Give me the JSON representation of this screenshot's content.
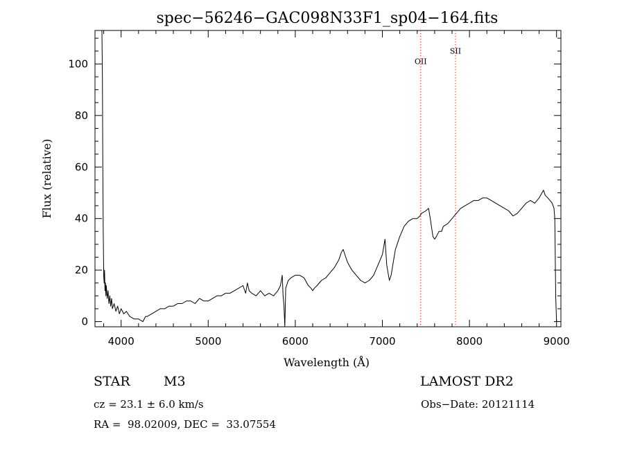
{
  "chart_data": {
    "type": "line",
    "title": "spec−56246−GAC098N33F1_sp04−164.fits",
    "xlabel": "Wavelength (Å)",
    "ylabel": "Flux (relative)",
    "xlim": [
      3700,
      9050
    ],
    "ylim": [
      -2,
      113
    ],
    "xticks": [
      4000,
      5000,
      6000,
      7000,
      8000,
      9000
    ],
    "yticks": [
      0,
      20,
      40,
      60,
      80,
      100
    ],
    "xtick_labels": [
      "4000",
      "5000",
      "6000",
      "7000",
      "8000",
      "9000"
    ],
    "ytick_labels": [
      "0",
      "20",
      "40",
      "60",
      "80",
      "100"
    ],
    "grid": false,
    "line_color": "#000000",
    "marker_color": "#ff0000",
    "annotations": [
      {
        "label": "OII",
        "x": 7440,
        "label_y": 100
      },
      {
        "label": "SII",
        "x": 7840,
        "label_y": 104
      }
    ],
    "series": [
      {
        "x": [
          3780,
          3785,
          3790,
          3795,
          3800,
          3805,
          3810,
          3815,
          3820,
          3825,
          3830,
          3840,
          3850,
          3860,
          3870,
          3880,
          3890,
          3900,
          3920,
          3940,
          3960,
          3980,
          4000,
          4030,
          4060,
          4100,
          4150,
          4200,
          4250,
          4280,
          4300,
          4350,
          4400,
          4450,
          4500,
          4550,
          4600,
          4650,
          4700,
          4750,
          4800,
          4850,
          4900,
          4950,
          5000,
          5050,
          5100,
          5150,
          5200,
          5250,
          5300,
          5350,
          5400,
          5430,
          5450,
          5470,
          5500,
          5550,
          5600,
          5650,
          5700,
          5750,
          5800,
          5830,
          5850,
          5860,
          5870,
          5880,
          5890,
          5900,
          5910,
          5920,
          5950,
          6000,
          6050,
          6100,
          6150,
          6180,
          6200,
          6220,
          6250,
          6300,
          6350,
          6400,
          6450,
          6500,
          6530,
          6550,
          6580,
          6600,
          6650,
          6700,
          6750,
          6800,
          6850,
          6900,
          6950,
          7000,
          7030,
          7050,
          7070,
          7080,
          7100,
          7120,
          7130,
          7150,
          7200,
          7250,
          7300,
          7350,
          7400,
          7430,
          7450,
          7500,
          7530,
          7550,
          7580,
          7600,
          7620,
          7650,
          7680,
          7700,
          7750,
          7800,
          7850,
          7900,
          7950,
          8000,
          8050,
          8100,
          8150,
          8200,
          8250,
          8300,
          8350,
          8400,
          8450,
          8500,
          8550,
          8600,
          8650,
          8700,
          8750,
          8800,
          8850,
          8870,
          8900,
          8950,
          8970,
          8980,
          8990,
          9000
        ],
        "y": [
          113,
          95,
          60,
          35,
          18,
          15,
          20,
          12,
          15,
          10,
          14,
          9,
          12,
          7,
          10,
          6,
          9,
          5,
          7,
          4,
          6,
          3,
          5,
          3,
          4,
          2,
          1,
          1,
          0,
          2,
          2,
          3,
          4,
          5,
          5,
          6,
          6,
          7,
          7,
          8,
          8,
          7,
          9,
          8,
          8,
          9,
          10,
          10,
          11,
          11,
          12,
          13,
          14,
          11,
          15,
          12,
          11,
          10,
          12,
          10,
          11,
          10,
          12,
          14,
          18,
          10,
          6,
          -2,
          13,
          14,
          15,
          16,
          17,
          18,
          18,
          17,
          14,
          13,
          12,
          13,
          14,
          16,
          17,
          19,
          21,
          24,
          27,
          28,
          25,
          23,
          20,
          18,
          16,
          15,
          16,
          18,
          22,
          26,
          32,
          22,
          18,
          16,
          18,
          22,
          24,
          28,
          33,
          37,
          39,
          40,
          40,
          41,
          42,
          43,
          44,
          40,
          33,
          32,
          33,
          35,
          35,
          37,
          38,
          40,
          42,
          44,
          45,
          46,
          47,
          47,
          48,
          48,
          47,
          46,
          45,
          44,
          43,
          41,
          42,
          44,
          46,
          47,
          46,
          48,
          51,
          49,
          48,
          46,
          44,
          40,
          10,
          0
        ]
      }
    ]
  },
  "info": {
    "object_type": "STAR",
    "subclass": "M3",
    "survey": "LAMOST DR2",
    "cz": "cz = 23.1 ± 6.0 km/s",
    "obs_date": "Obs−Date: 20121114",
    "coords": "RA =  98.02009, DEC =  33.07554"
  }
}
